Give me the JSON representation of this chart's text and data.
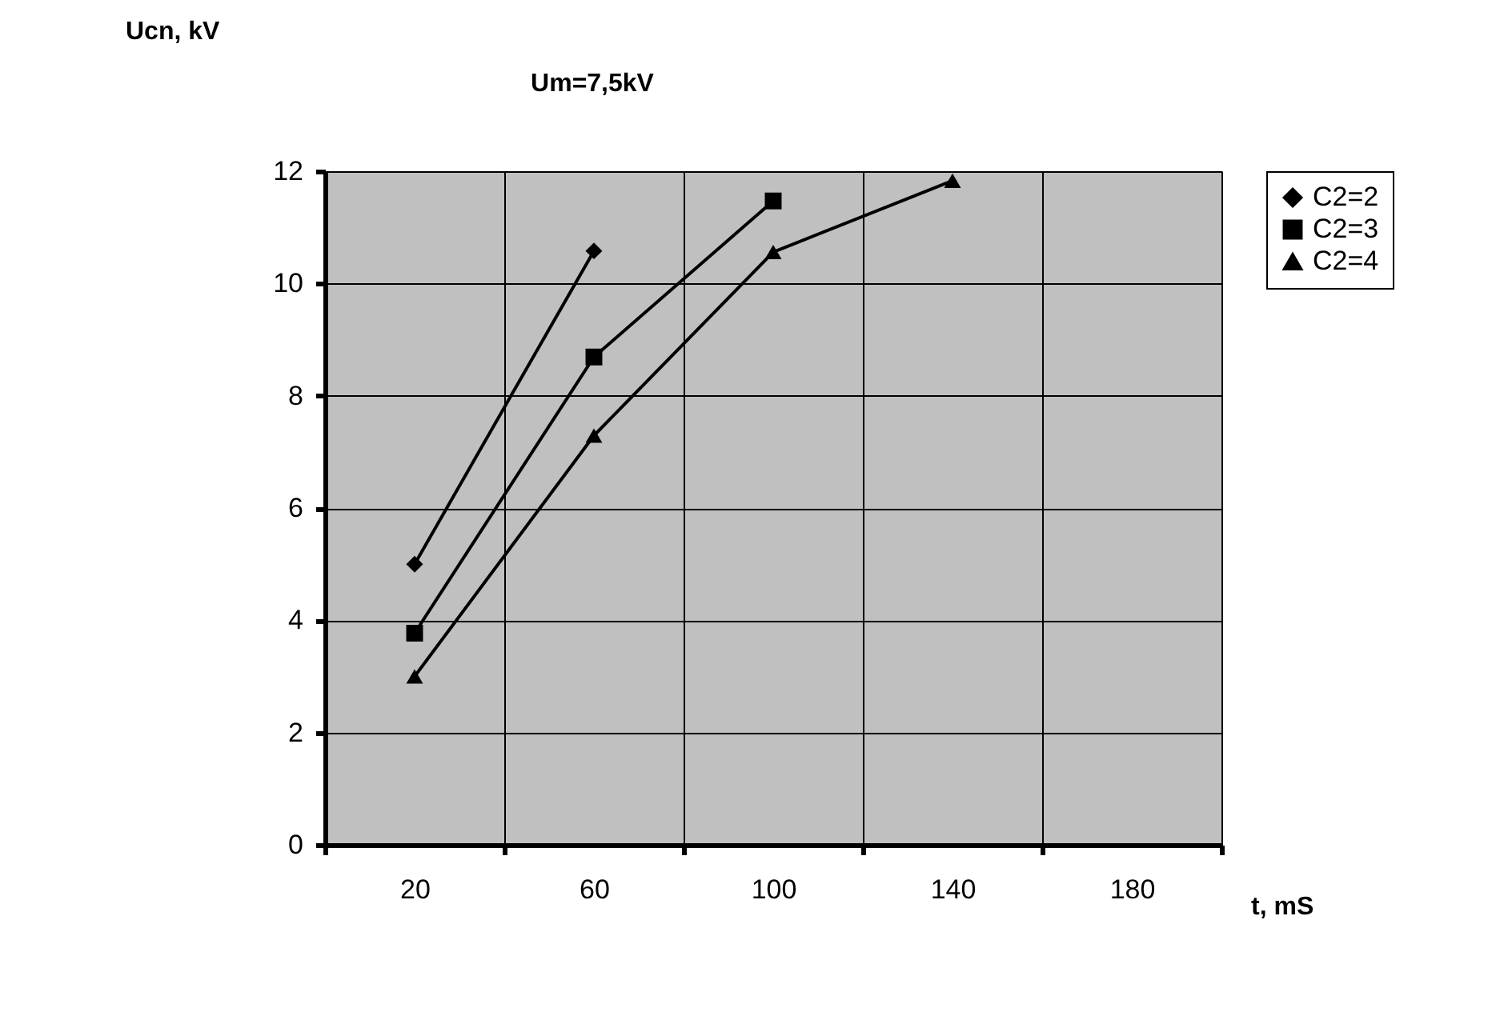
{
  "chart_data": {
    "type": "line",
    "title": "Um=7,5kV",
    "xlabel": "t, mS",
    "ylabel": "Ucn, kV",
    "categories": [
      "20",
      "60",
      "100",
      "140",
      "180"
    ],
    "ylim": [
      0,
      12
    ],
    "yticks": [
      0,
      2,
      4,
      6,
      8,
      10,
      12
    ],
    "grid": true,
    "legend": "right",
    "line_style": "solid",
    "series": [
      {
        "name": "C2=2",
        "color": "#000000",
        "marker": "diamond",
        "values": [
          5.0,
          10.58,
          null,
          null,
          null
        ]
      },
      {
        "name": "C2=3",
        "color": "#000000",
        "marker": "square",
        "values": [
          3.77,
          8.69,
          11.47,
          null,
          null
        ]
      },
      {
        "name": "C2=4",
        "color": "#000000",
        "marker": "triangle",
        "values": [
          3.0,
          7.29,
          10.56,
          11.83,
          null
        ]
      }
    ]
  }
}
